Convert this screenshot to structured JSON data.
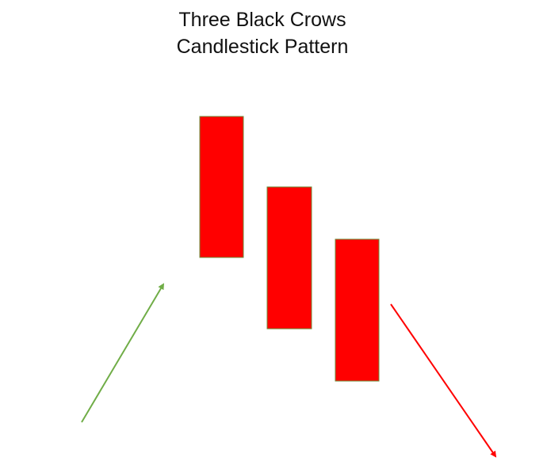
{
  "title": {
    "line1": "Three Black Crows",
    "line2": "Candlestick Pattern"
  },
  "candles": [
    {
      "name": "candle-1",
      "direction": "bearish"
    },
    {
      "name": "candle-2",
      "direction": "bearish"
    },
    {
      "name": "candle-3",
      "direction": "bearish"
    }
  ],
  "arrows": {
    "prior_trend": {
      "direction": "up",
      "color": "#70ad47"
    },
    "subsequent_trend": {
      "direction": "down",
      "color": "#ff0000"
    }
  },
  "colors": {
    "candle_fill": "#ff0000",
    "candle_border": "#6b8e3a"
  }
}
